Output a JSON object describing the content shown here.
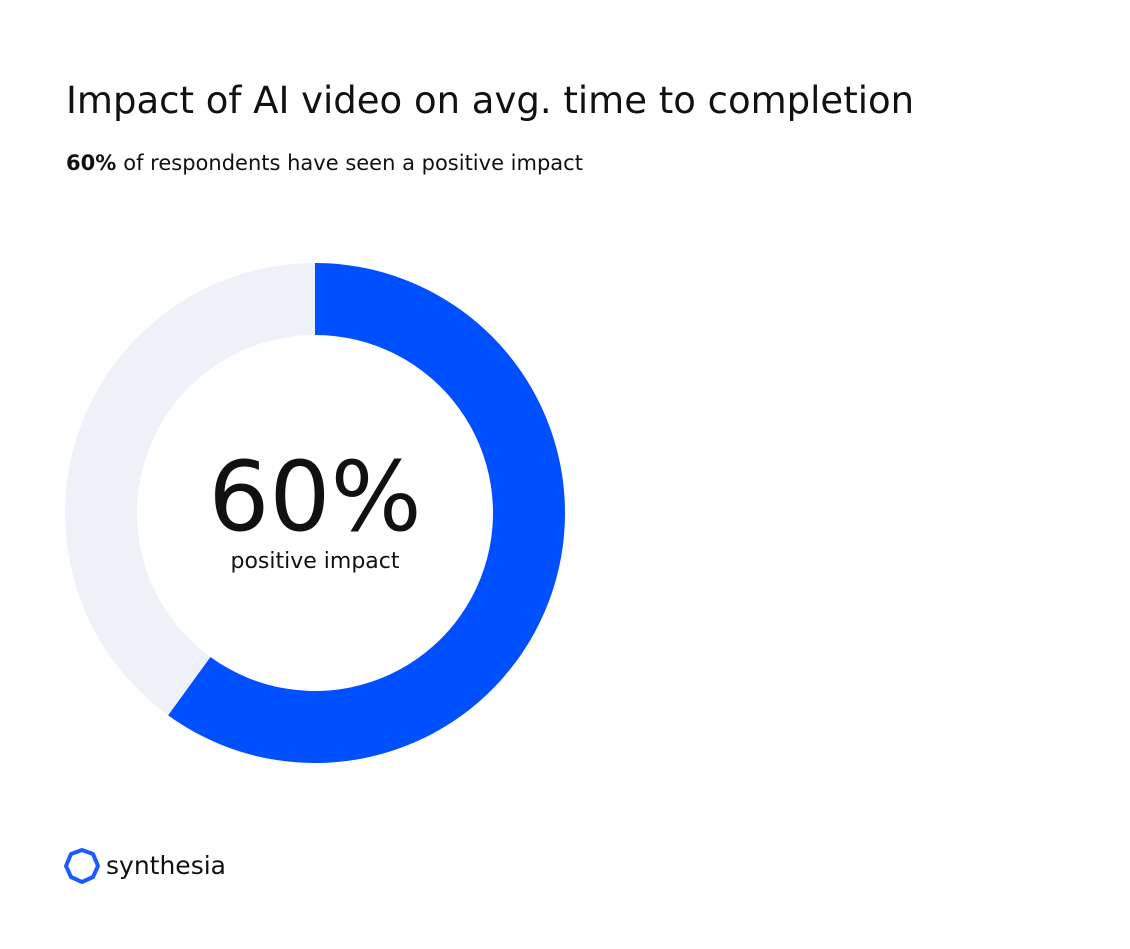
{
  "chart_data": {
    "type": "donut",
    "title": "Impact of AI video on avg. time to completion",
    "subtitle_highlight": "60%",
    "subtitle": "of respondents have seen a positive impact",
    "categories": [
      "positive impact",
      null
    ],
    "values": [
      60,
      40
    ],
    "value_labels": [
      "60%",
      null
    ],
    "colors": [
      "#0050ff",
      "#eef2f8"
    ]
  },
  "brand": "synthesia"
}
